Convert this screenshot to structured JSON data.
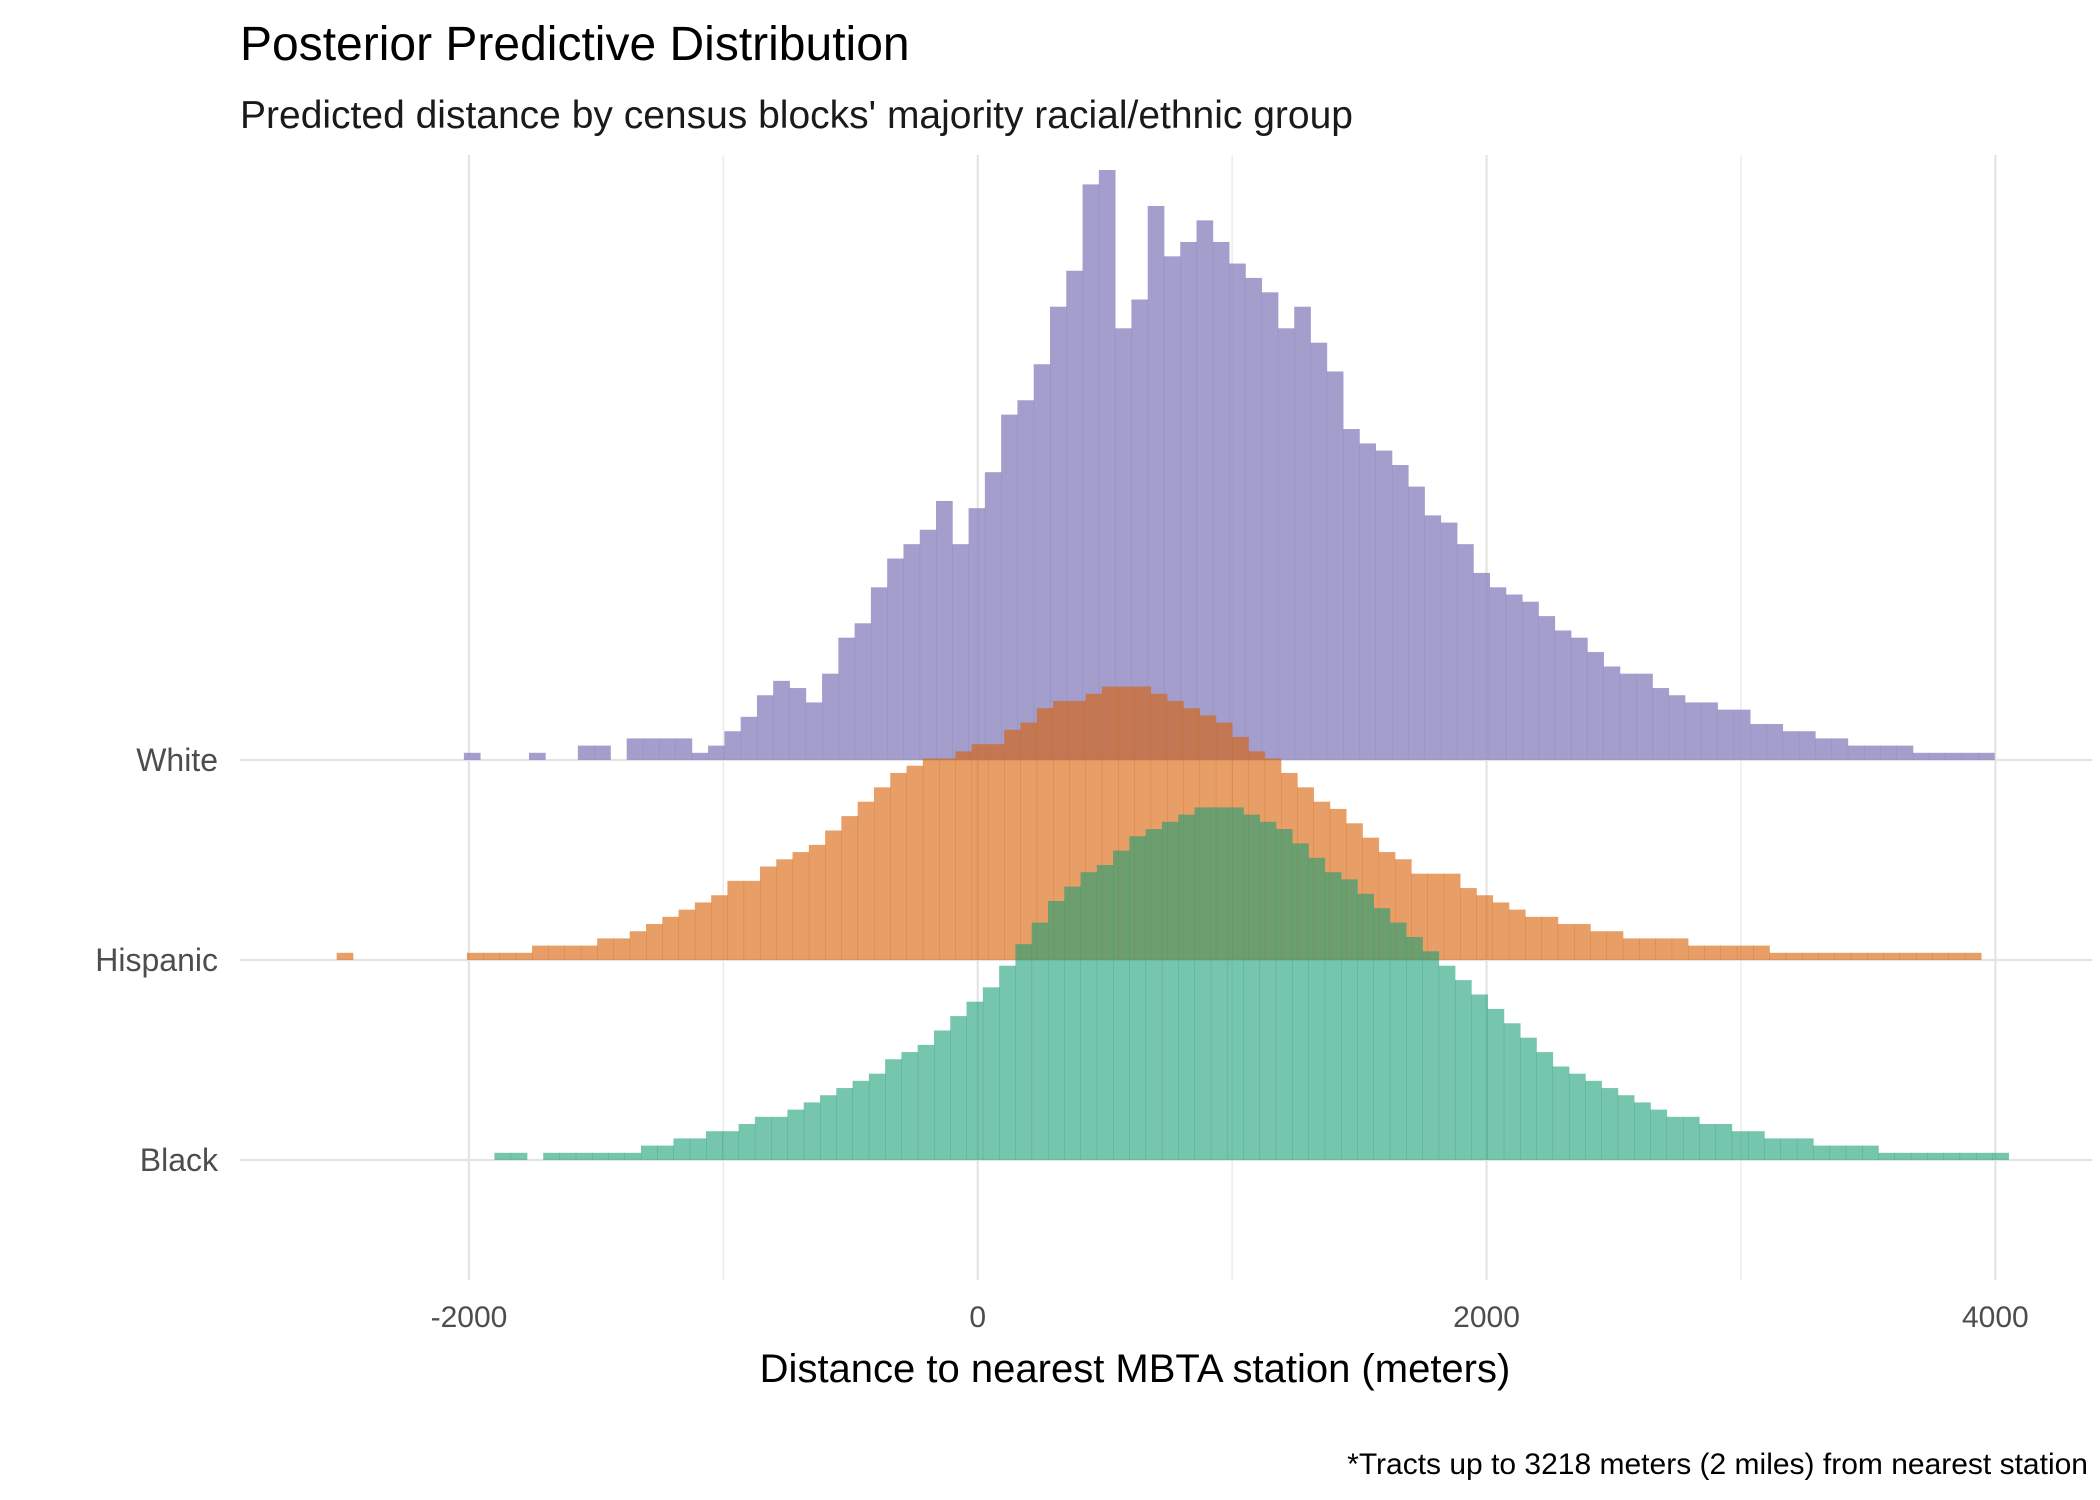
{
  "chart_data": {
    "type": "bar",
    "subtype": "ridgeline-histogram",
    "title": "Posterior Predictive Distribution",
    "subtitle": "Predicted distance by census blocks' majority racial/ethnic group",
    "xlabel": "Distance to nearest MBTA station (meters)",
    "ylabel": "",
    "caption": "*Tracts up to 3218 meters (2 miles) from nearest station",
    "xlim": [
      -2900,
      4380
    ],
    "x_ticks": [
      {
        "value": -2000,
        "label": "-2000"
      },
      {
        "value": 0,
        "label": "0"
      },
      {
        "value": 2000,
        "label": "2000"
      },
      {
        "value": 4000,
        "label": "4000"
      }
    ],
    "bin_width": 64,
    "grid": true,
    "legend": "none",
    "ridge_scale": 2.95,
    "series": [
      {
        "name": "White",
        "color": "#8c86bf",
        "opacity": 0.8,
        "bins_start": -2020,
        "counts": [
          1,
          0,
          0,
          0,
          1,
          0,
          0,
          2,
          2,
          0,
          3,
          3,
          3,
          3,
          1,
          2,
          4,
          6,
          9,
          11,
          10,
          8,
          12,
          17,
          19,
          24,
          28,
          30,
          32,
          36,
          30,
          35,
          40,
          48,
          50,
          55,
          63,
          68,
          80,
          82,
          60,
          64,
          77,
          70,
          72,
          75,
          72,
          69,
          67,
          65,
          60,
          63,
          58,
          54,
          46,
          44,
          43,
          41,
          38,
          34,
          33,
          30,
          26,
          24,
          23,
          22,
          20,
          18,
          17,
          15,
          13,
          12,
          12,
          10,
          9,
          8,
          8,
          7,
          7,
          5,
          5,
          4,
          4,
          3,
          3,
          2,
          2,
          2,
          2,
          1,
          1,
          1,
          1,
          1,
          0,
          0,
          0,
          0,
          0,
          0,
          0
        ]
      },
      {
        "name": "Hispanic",
        "color": "#d95f02",
        "opacity": 0.6,
        "bins_start": -2520,
        "counts": [
          1,
          0,
          0,
          0,
          0,
          0,
          0,
          0,
          1,
          1,
          1,
          1,
          2,
          2,
          2,
          2,
          3,
          3,
          4,
          5,
          6,
          7,
          8,
          9,
          11,
          11,
          13,
          14,
          15,
          16,
          18,
          20,
          22,
          24,
          26,
          27,
          28,
          28,
          29,
          30,
          30,
          32,
          33,
          35,
          36,
          36,
          37,
          38,
          38,
          38,
          37,
          36,
          35,
          34,
          33,
          31,
          29,
          28,
          26,
          24,
          22,
          21,
          19,
          17,
          15,
          14,
          12,
          12,
          12,
          10,
          9,
          8,
          7,
          6,
          6,
          5,
          5,
          4,
          4,
          3,
          3,
          3,
          3,
          2,
          2,
          2,
          2,
          2,
          1,
          1,
          1,
          1,
          1,
          1,
          1,
          1,
          1,
          1,
          1,
          1,
          1,
          0
        ]
      },
      {
        "name": "Black",
        "color": "#1b9e77",
        "opacity": 0.6,
        "bins_start": -1900,
        "counts": [
          1,
          1,
          0,
          1,
          1,
          1,
          1,
          1,
          1,
          2,
          2,
          3,
          3,
          4,
          4,
          5,
          6,
          6,
          7,
          8,
          9,
          10,
          11,
          12,
          14,
          15,
          16,
          18,
          20,
          22,
          24,
          27,
          30,
          33,
          36,
          38,
          40,
          41,
          43,
          45,
          46,
          47,
          48,
          49,
          49,
          49,
          48,
          47,
          46,
          44,
          42,
          40,
          39,
          37,
          35,
          33,
          31,
          29,
          27,
          25,
          23,
          21,
          19,
          17,
          15,
          13,
          12,
          11,
          10,
          9,
          8,
          7,
          6,
          6,
          5,
          5,
          4,
          4,
          3,
          3,
          3,
          2,
          2,
          2,
          2,
          1,
          1,
          1,
          1,
          1,
          1,
          1,
          1,
          0
        ]
      }
    ]
  }
}
